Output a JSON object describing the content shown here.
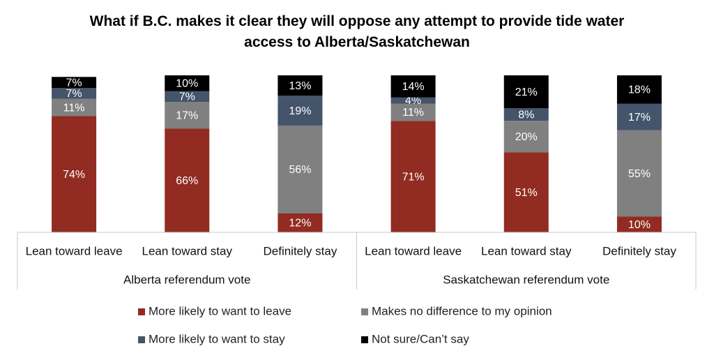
{
  "chart_data": {
    "type": "stacked-bar",
    "title": "What if B.C. makes it clear they will oppose any attempt to provide tide water access to Alberta/Saskatchewan",
    "categories": [
      "Lean toward leave",
      "Lean toward stay",
      "Definitely stay",
      "Lean toward leave",
      "Lean toward stay",
      "Definitely stay"
    ],
    "groups": [
      "Alberta referendum vote",
      "Saskatchewan referendum vote"
    ],
    "ylim": [
      0,
      100
    ],
    "series": [
      {
        "name": "More likely to want to leave",
        "color": "#922b21",
        "values": [
          74,
          66,
          12,
          71,
          51,
          10
        ],
        "value_labels": [
          "74%",
          "66%",
          "12%",
          "71%",
          "51%",
          "10%"
        ]
      },
      {
        "name": "Makes no difference to my opinion",
        "color": "#808080",
        "values": [
          11,
          17,
          56,
          11,
          20,
          55
        ],
        "value_labels": [
          "11%",
          "17%",
          "56%",
          "11%",
          "20%",
          "55%"
        ]
      },
      {
        "name": "More likely to want to stay",
        "color": "#44546a",
        "values": [
          7,
          7,
          19,
          4,
          8,
          17
        ],
        "value_labels": [
          "7%",
          "7%",
          "19%",
          "4%",
          "8%",
          "17%"
        ]
      },
      {
        "name": "Not sure/Can’t say",
        "color": "#000000",
        "values": [
          7,
          10,
          13,
          14,
          21,
          18
        ],
        "value_labels": [
          "7%",
          "10%",
          "13%",
          "14%",
          "21%",
          "18%"
        ]
      }
    ]
  }
}
